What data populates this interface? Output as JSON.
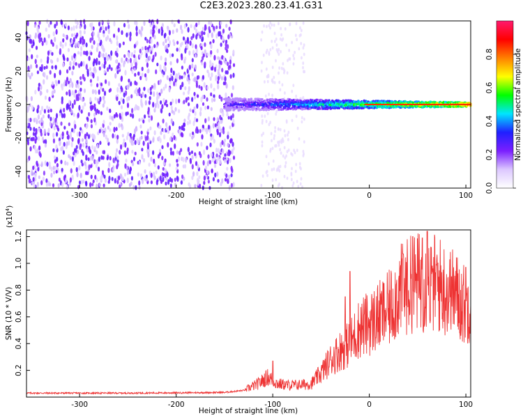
{
  "figure": {
    "title": "C2E3.2023.280.23.41.G31"
  },
  "chart_data": [
    {
      "type": "heatmap",
      "title": "C2E3.2023.280.23.41.G31",
      "xlabel": "Height of straight line (km)",
      "ylabel": "Frequency (Hz)",
      "xlim": [
        -355,
        105
      ],
      "ylim": [
        -50,
        50
      ],
      "x_ticks": [
        -300,
        -200,
        -100,
        0,
        100
      ],
      "y_ticks": [
        -40,
        -20,
        0,
        20,
        40
      ],
      "colorbar": {
        "label": "Normalized spectral amplitude",
        "range": [
          0.0,
          1.0
        ],
        "ticks": [
          "0.0",
          "0.2",
          "0.4",
          "0.6",
          "0.8"
        ],
        "tick_values": [
          0.0,
          0.2,
          0.4,
          0.6,
          0.8
        ],
        "colormap": [
          "#ffffff",
          "#dcc8ff",
          "#7b1fff",
          "#2020ff",
          "#00e5ff",
          "#00ff00",
          "#ffff00",
          "#ff8000",
          "#ff0000",
          "#ff1a6e"
        ]
      },
      "features": {
        "noise_region_x": [
          -355,
          -140
        ],
        "signal_start_x": -150,
        "signal_center_freq": 0,
        "noise_amplitude": 0.2,
        "signal_amplitude_near_zero_height": 0.85
      },
      "grid": false
    },
    {
      "type": "line",
      "xlabel": "Height of straight line (km)",
      "ylabel": "SNR (10 * V/V)",
      "y_exponent_label": "(x10",
      "y_exponent_power": "4",
      "xlim": [
        -355,
        105
      ],
      "ylim": [
        0,
        12500
      ],
      "x_ticks": [
        -300,
        -200,
        -100,
        0,
        100
      ],
      "y_ticks": [
        2000,
        4000,
        6000,
        8000,
        10000,
        12000
      ],
      "y_tick_labels": [
        "0.2",
        "0.4",
        "0.6",
        "0.8",
        "1.0",
        "1.2"
      ],
      "line_color": "#ee3333",
      "grid": false,
      "series": [
        {
          "x": [
            -355,
            -300,
            -250,
            -200,
            -150,
            -130,
            -115,
            -105,
            -95,
            -85,
            -75,
            -60,
            -50,
            -40,
            -30,
            -20,
            -10,
            0,
            10,
            20,
            30,
            40,
            50,
            60,
            70,
            80,
            90,
            100,
            105
          ],
          "values": [
            300,
            300,
            300,
            320,
            350,
            500,
            1000,
            1500,
            1000,
            900,
            900,
            1000,
            1800,
            2800,
            3500,
            4000,
            5200,
            5500,
            6000,
            6500,
            7800,
            8300,
            8600,
            8500,
            8500,
            8000,
            7600,
            6800,
            7400
          ],
          "peaks": [
            [
              -100,
              2700
            ],
            [
              -25,
              7500
            ],
            [
              -20,
              9400
            ],
            [
              15,
              8500
            ],
            [
              35,
              10700
            ],
            [
              45,
              12000
            ],
            [
              55,
              11900
            ],
            [
              60,
              12400
            ],
            [
              65,
              9800
            ],
            [
              85,
              9000
            ],
            [
              100,
              9700
            ]
          ]
        }
      ]
    }
  ]
}
